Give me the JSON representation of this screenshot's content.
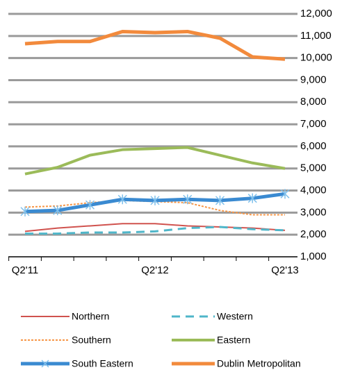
{
  "chart_data": {
    "type": "line",
    "categories": [
      "Q2'11",
      null,
      null,
      null,
      "Q2'12",
      null,
      null,
      null,
      "Q2'13"
    ],
    "series": [
      {
        "name": "Northern",
        "color": "#d0524e",
        "width": 2,
        "style": "solid",
        "values": [
          2150,
          2300,
          2400,
          2500,
          2500,
          2400,
          2350,
          2300,
          2200
        ]
      },
      {
        "name": "Western",
        "color": "#4fb6c9",
        "width": 3,
        "style": "dashed",
        "values": [
          2050,
          2050,
          2100,
          2100,
          2150,
          2300,
          2350,
          2250,
          2200
        ]
      },
      {
        "name": "Southern",
        "color": "#f79646",
        "width": 2,
        "style": "dotted",
        "values": [
          3250,
          3300,
          3450,
          3550,
          3500,
          3450,
          3100,
          2900,
          2900
        ]
      },
      {
        "name": "Eastern",
        "color": "#9bbb59",
        "width": 4,
        "style": "solid",
        "values": [
          4750,
          5050,
          5600,
          5850,
          5900,
          5950,
          5600,
          5250,
          5000
        ]
      },
      {
        "name": "South Eastern",
        "color": "#3a8ad1",
        "width": 5,
        "style": "solid",
        "marker": "star",
        "values": [
          3050,
          3100,
          3350,
          3600,
          3550,
          3600,
          3550,
          3650,
          3850
        ]
      },
      {
        "name": "Dublin Metropolitan",
        "color": "#f28a3c",
        "width": 5,
        "style": "solid",
        "values": [
          10650,
          10750,
          10750,
          11200,
          11150,
          11200,
          10900,
          10050,
          9950
        ]
      }
    ],
    "ylim": [
      1000,
      12000
    ],
    "yticks": [
      {
        "value": 1000,
        "label": "1,000"
      },
      {
        "value": 2000,
        "label": "2,000"
      },
      {
        "value": 3000,
        "label": "3,000"
      },
      {
        "value": 4000,
        "label": "4,000"
      },
      {
        "value": 5000,
        "label": "5,000"
      },
      {
        "value": 6000,
        "label": "6,000"
      },
      {
        "value": 7000,
        "label": "7,000"
      },
      {
        "value": 8000,
        "label": "8,000"
      },
      {
        "value": 9000,
        "label": "9,000"
      },
      {
        "value": 10000,
        "label": "10,000"
      },
      {
        "value": 11000,
        "label": "11,000"
      },
      {
        "value": 12000,
        "label": "12,000"
      }
    ],
    "grid": true,
    "legend": "bottom"
  }
}
